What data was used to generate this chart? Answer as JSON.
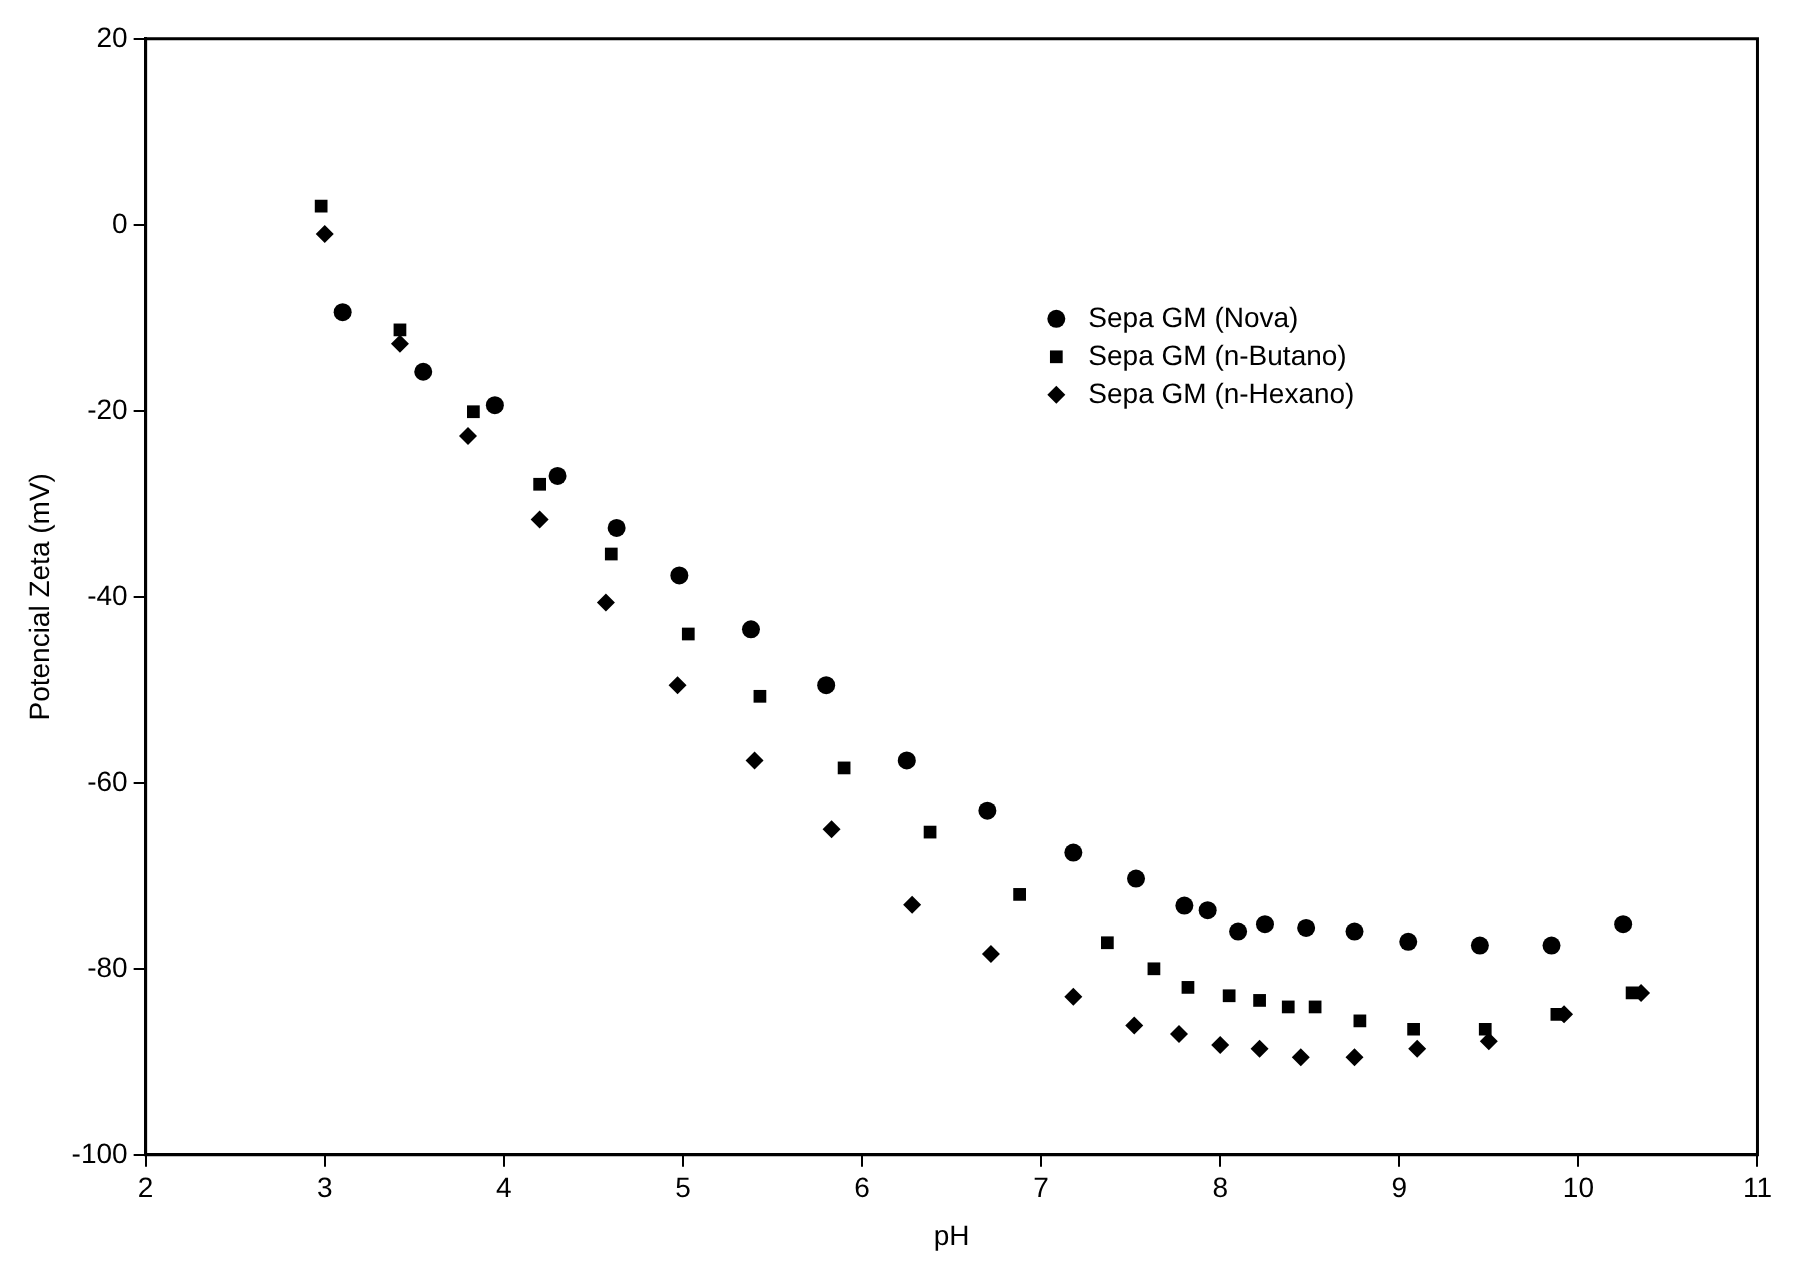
{
  "chart_data": {
    "type": "scatter",
    "xlabel": "pH",
    "ylabel": "Potencial Zeta (mV)",
    "xlim": [
      2,
      11
    ],
    "xticks": [
      2,
      3,
      4,
      5,
      6,
      7,
      8,
      9,
      10,
      11
    ],
    "ylim": [
      -100,
      20
    ],
    "yticks": [
      -100,
      -80,
      -60,
      -40,
      -20,
      0,
      20
    ],
    "grid": false,
    "legend": "top right",
    "series": [
      {
        "name": "Sepa GM (Nova)",
        "color": "#000000",
        "marker": "circle",
        "x": [
          3.1,
          3.55,
          3.95,
          4.3,
          4.63,
          4.98,
          5.38,
          5.8,
          6.25,
          6.7,
          7.18,
          7.53,
          7.8,
          7.93,
          8.1,
          8.25,
          8.48,
          8.75,
          9.05,
          9.45,
          9.85,
          10.25
        ],
        "values": [
          -9.4,
          -15.8,
          -19.4,
          -27,
          -32.6,
          -37.7,
          -43.5,
          -49.5,
          -57.6,
          -63,
          -67.5,
          -70.3,
          -73.2,
          -73.7,
          -76,
          -75.2,
          -75.6,
          -76,
          -77.1,
          -77.5,
          -77.5,
          -75.2
        ]
      },
      {
        "name": "Sepa GM (n-Butano)",
        "color": "#000000",
        "marker": "square",
        "x": [
          2.98,
          3.42,
          3.83,
          4.2,
          4.6,
          5.03,
          5.43,
          5.9,
          6.38,
          6.88,
          7.37,
          7.63,
          7.82,
          8.05,
          8.22,
          8.38,
          8.53,
          8.78,
          9.08,
          9.48,
          9.88,
          10.3
        ],
        "values": [
          2,
          -11.3,
          -20.1,
          -27.9,
          -35.4,
          -44,
          -50.7,
          -58.4,
          -65.3,
          -72,
          -77.2,
          -80,
          -82,
          -82.9,
          -83.4,
          -84.1,
          -84.1,
          -85.6,
          -86.5,
          -86.5,
          -84.9,
          -82.6
        ]
      },
      {
        "name": "Sepa GM (n-Hexano)",
        "color": "#000000",
        "marker": "diamond",
        "x": [
          3.0,
          3.42,
          3.8,
          4.2,
          4.57,
          4.97,
          5.4,
          5.83,
          6.28,
          6.72,
          7.18,
          7.52,
          7.77,
          8.0,
          8.22,
          8.45,
          8.75,
          9.1,
          9.5,
          9.92,
          10.35
        ],
        "values": [
          -1,
          -12.8,
          -22.7,
          -31.7,
          -40.6,
          -49.5,
          -57.6,
          -65,
          -73.1,
          -78.4,
          -83,
          -86.1,
          -87,
          -88.2,
          -88.6,
          -89.5,
          -89.5,
          -88.6,
          -87.8,
          -84.9,
          -82.6
        ]
      }
    ]
  }
}
